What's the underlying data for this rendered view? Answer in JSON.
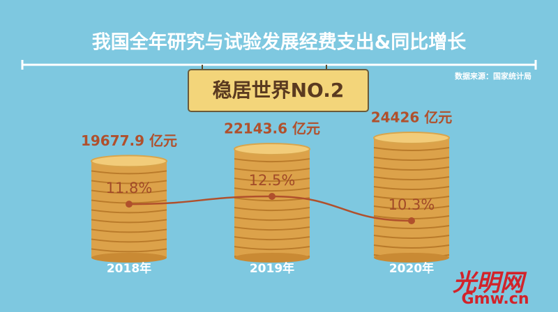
{
  "chart_data": {
    "type": "bar",
    "title": "我国全年研究与试验发展经费支出&同比增长",
    "source": "数据来源：国家统计局",
    "badge": "稳居世界NO.2",
    "categories": [
      "2018年",
      "2019年",
      "2020年"
    ],
    "values": [
      19677.9,
      22143.6,
      24426
    ],
    "value_labels": [
      "19677.9 亿元",
      "22143.6 亿元",
      "24426 亿元"
    ],
    "color": "#dca24a",
    "line": {
      "values": [
        11.8,
        12.5,
        10.3
      ],
      "value_labels": [
        "11.8%",
        "12.5%",
        "10.3%"
      ],
      "color": "#b0502c"
    },
    "watermark": [
      "光明网",
      "Gmw.cn"
    ]
  }
}
